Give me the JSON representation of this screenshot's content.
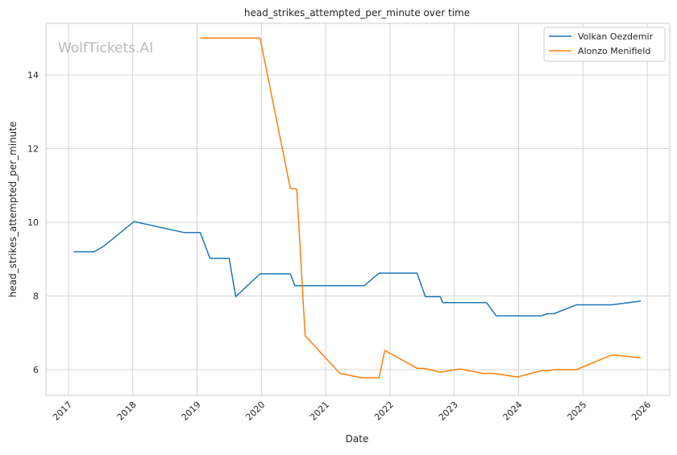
{
  "watermark": "WolfTickets.AI",
  "chart_data": {
    "type": "line",
    "title": "head_strikes_attempted_per_minute over time",
    "xlabel": "Date",
    "ylabel": "head_strikes_attempted_per_minute",
    "xlim": [
      2016.65,
      2026.35
    ],
    "ylim": [
      5.3,
      15.4
    ],
    "x_ticks": [
      2017,
      2018,
      2019,
      2020,
      2021,
      2022,
      2023,
      2024,
      2025,
      2026
    ],
    "x_tick_labels": [
      "2017",
      "2018",
      "2019",
      "2020",
      "2021",
      "2022",
      "2023",
      "2024",
      "2025",
      "2026"
    ],
    "y_ticks": [
      6,
      8,
      10,
      12,
      14
    ],
    "y_tick_labels": [
      "6",
      "8",
      "10",
      "12",
      "14"
    ],
    "grid": true,
    "legend_position": "top-right",
    "series": [
      {
        "name": "Volkan Oezdemir",
        "color": "#1f77b4",
        "x": [
          2017.08,
          2017.4,
          2017.55,
          2018.02,
          2018.8,
          2019.05,
          2019.2,
          2019.5,
          2019.6,
          2019.98,
          2020.45,
          2020.52,
          2021.6,
          2021.83,
          2022.42,
          2022.55,
          2022.78,
          2022.82,
          2023.5,
          2023.65,
          2024.35,
          2024.45,
          2024.55,
          2024.9,
          2025.45,
          2025.9
        ],
        "y": [
          9.2,
          9.2,
          9.35,
          10.02,
          9.72,
          9.72,
          9.02,
          9.02,
          7.98,
          8.6,
          8.6,
          8.28,
          8.28,
          8.62,
          8.62,
          7.98,
          7.98,
          7.82,
          7.82,
          7.46,
          7.46,
          7.52,
          7.52,
          7.76,
          7.76,
          7.86
        ]
      },
      {
        "name": "Alonzo Menifield",
        "color": "#ff7f0e",
        "x": [
          2019.05,
          2019.98,
          2020.45,
          2020.55,
          2020.68,
          2021.22,
          2021.55,
          2021.83,
          2021.92,
          2022.42,
          2022.55,
          2022.78,
          2023.08,
          2023.45,
          2023.6,
          2023.98,
          2024.35,
          2024.45,
          2024.55,
          2024.9,
          2025.45,
          2025.9
        ],
        "y": [
          15.0,
          15.0,
          10.92,
          10.9,
          6.92,
          5.9,
          5.78,
          5.78,
          6.52,
          6.04,
          6.03,
          5.93,
          6.02,
          5.9,
          5.9,
          5.8,
          5.97,
          5.97,
          6.0,
          6.0,
          6.4,
          6.32
        ]
      }
    ]
  }
}
